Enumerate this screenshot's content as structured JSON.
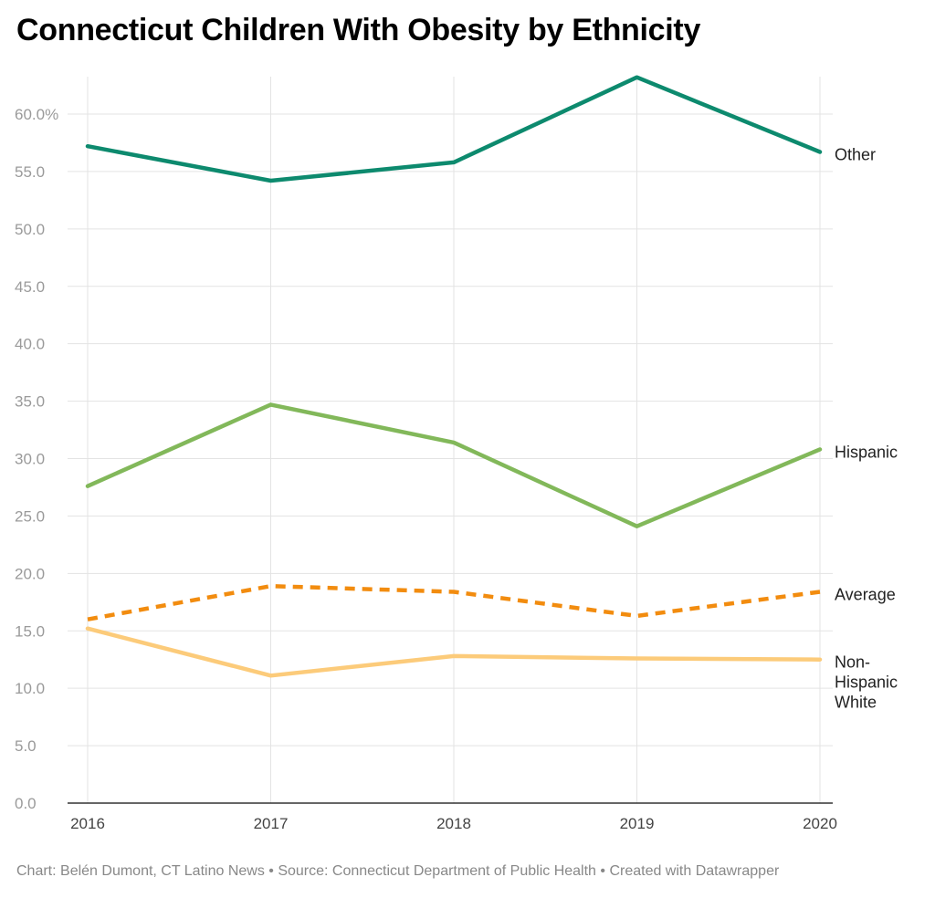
{
  "title": "Connecticut Children With Obesity by Ethnicity",
  "footer": "Chart: Belén Dumont, CT Latino News • Source: Connecticut Department of Public Health • Created with Datawrapper",
  "chart_data": {
    "type": "line",
    "title": "Connecticut Children With Obesity by Ethnicity",
    "x": [
      "2016",
      "2017",
      "2018",
      "2019",
      "2020"
    ],
    "xlabel": "",
    "ylabel": "",
    "ylim": [
      0,
      60
    ],
    "yticks": [
      "0.0",
      "5.0",
      "10.0",
      "15.0",
      "20.0",
      "25.0",
      "30.0",
      "35.0",
      "40.0",
      "45.0",
      "50.0",
      "55.0",
      "60.0%"
    ],
    "grid": true,
    "legend": "direct labels at right end of lines",
    "series": [
      {
        "name": "Other",
        "values": [
          57.2,
          54.2,
          55.8,
          63.2,
          56.7
        ],
        "color": "#0d8a6e",
        "dashed": false
      },
      {
        "name": "Hispanic",
        "values": [
          27.6,
          34.7,
          31.4,
          24.1,
          30.8
        ],
        "color": "#82b85a",
        "dashed": false
      },
      {
        "name": "Average",
        "values": [
          16.0,
          18.9,
          18.4,
          16.3,
          18.4
        ],
        "color": "#f28c0f",
        "dashed": true
      },
      {
        "name": "Non-Hispanic White",
        "label_lines": [
          "Non-",
          "Hispanic",
          "White"
        ],
        "values": [
          15.2,
          11.1,
          12.8,
          12.6,
          12.5
        ],
        "color": "#fccb7a",
        "dashed": false
      }
    ]
  }
}
